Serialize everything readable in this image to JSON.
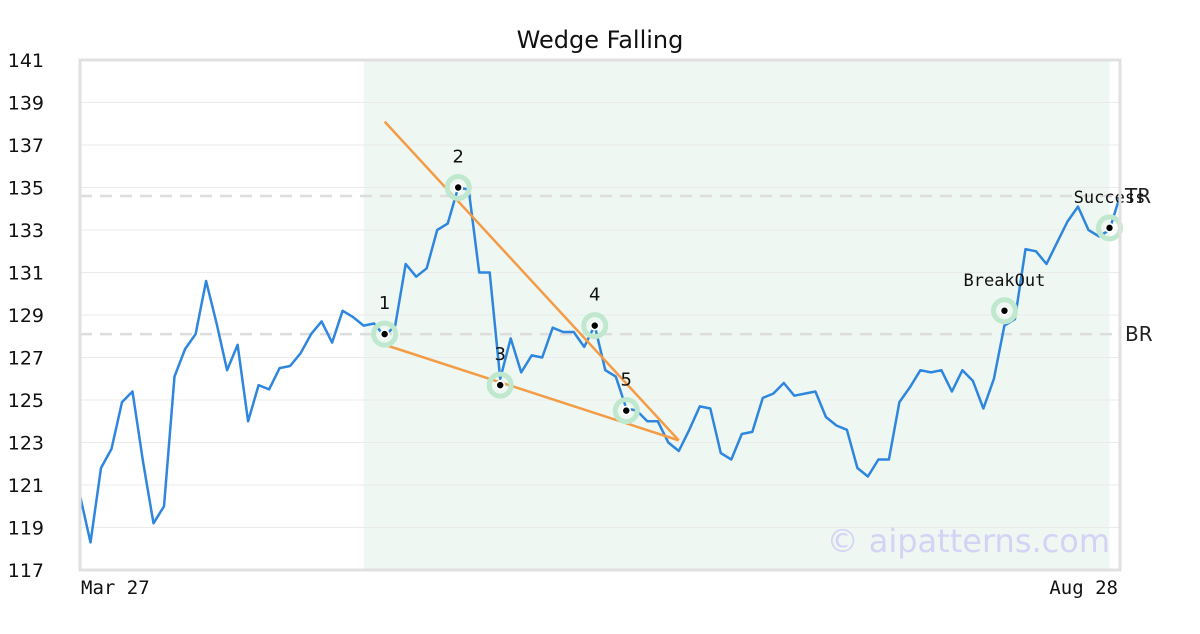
{
  "chart_data": {
    "type": "line",
    "title": "Wedge Falling",
    "xlabel": "",
    "ylabel": "",
    "ylim": [
      117,
      141
    ],
    "y_ticks": [
      117,
      119,
      121,
      123,
      125,
      127,
      129,
      131,
      133,
      135,
      137,
      139,
      141
    ],
    "x_start_label": "Mar 27",
    "x_end_label": "Aug 28",
    "grid": true,
    "series": [
      {
        "values": [
          120.5,
          118.3,
          121.8,
          122.7,
          124.9,
          125.4,
          122.1,
          119.2,
          120.0,
          126.1,
          127.4,
          128.1,
          130.6,
          128.6,
          126.4,
          127.6,
          124.0,
          125.7,
          125.5,
          126.5,
          126.6,
          127.2,
          128.1,
          128.7,
          127.7,
          129.2,
          128.9,
          128.5,
          128.6,
          128.0,
          128.5,
          131.4,
          130.8,
          131.2,
          133.0,
          133.3,
          135.0,
          134.9,
          131.0,
          131.0,
          126.0,
          127.9,
          126.3,
          127.1,
          127.0,
          128.4,
          128.2,
          128.2,
          127.5,
          128.5,
          126.4,
          126.1,
          124.6,
          124.5,
          124.0,
          124.0,
          123.0,
          122.6,
          123.6,
          124.7,
          124.6,
          122.5,
          122.2,
          123.4,
          123.5,
          125.1,
          125.3,
          125.8,
          125.2,
          125.3,
          125.4,
          124.2,
          123.8,
          123.6,
          121.8,
          121.4,
          122.2,
          122.2,
          124.9,
          125.6,
          126.4,
          126.3,
          126.4,
          125.4,
          126.4,
          125.9,
          124.6,
          126.0,
          128.5,
          128.8,
          132.1,
          132.0,
          131.4,
          132.4,
          133.4,
          134.1,
          133.0,
          132.7,
          133.0,
          134.6
        ]
      }
    ],
    "highlight_range": [
      27,
      98
    ],
    "horizontal_levels": [
      {
        "label": "TR",
        "y": 134.6
      },
      {
        "label": "BR",
        "y": 128.1
      }
    ],
    "trendlines": [
      {
        "x1": 29,
        "y1": 138.1,
        "x2": 57,
        "y2": 123.1
      },
      {
        "x1": 29,
        "y1": 127.6,
        "x2": 57,
        "y2": 123.1
      }
    ],
    "points": [
      {
        "label": "1",
        "x": 29,
        "y": 128.1,
        "label_pos": "above"
      },
      {
        "label": "2",
        "x": 36,
        "y": 135.0,
        "label_pos": "above"
      },
      {
        "label": "3",
        "x": 40,
        "y": 125.7,
        "label_pos": "above"
      },
      {
        "label": "4",
        "x": 49,
        "y": 128.5,
        "label_pos": "above"
      },
      {
        "label": "5",
        "x": 52,
        "y": 124.5,
        "label_pos": "above"
      },
      {
        "label": "BreakOut",
        "x": 88,
        "y": 129.2,
        "label_pos": "above"
      },
      {
        "label": "Success",
        "x": 98,
        "y": 133.1,
        "label_pos": "above"
      }
    ],
    "watermark": "© aipatterns.com",
    "colors": {
      "line": "#2e86de",
      "trendline": "#f39c45",
      "highlight": "#eef7f2",
      "marker_halo": "#bfe8cf",
      "level": "#dddddd",
      "watermark": "#d3d3f5"
    }
  }
}
